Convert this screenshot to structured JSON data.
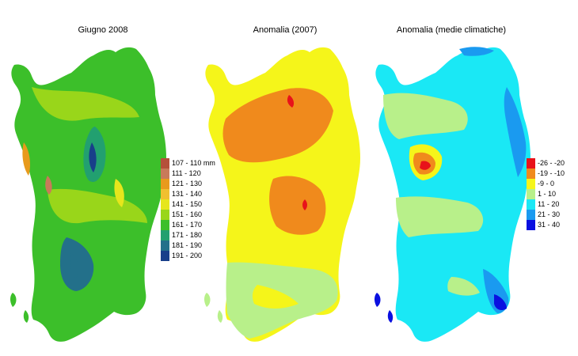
{
  "panels": [
    {
      "title": "Giugno 2008"
    },
    {
      "title": "Anomalia (2007)"
    },
    {
      "title": "Anomalia (medie climatiche)"
    }
  ],
  "legend_rain": [
    {
      "label": "107 - 110 mm",
      "color": "#b5503a"
    },
    {
      "label": "111 - 120",
      "color": "#c87a5a"
    },
    {
      "label": "121 - 130",
      "color": "#e89a1c"
    },
    {
      "label": "131 - 140",
      "color": "#f0c030"
    },
    {
      "label": "141 - 150",
      "color": "#e6e61c"
    },
    {
      "label": "151 - 160",
      "color": "#99d61a"
    },
    {
      "label": "161 - 170",
      "color": "#3cbf2a"
    },
    {
      "label": "171 - 180",
      "color": "#22a070"
    },
    {
      "label": "181 - 190",
      "color": "#23708a"
    },
    {
      "label": "191 - 200",
      "color": "#183f8a"
    }
  ],
  "legend_anomaly": [
    {
      "label": "-26 - -20",
      "color": "#e8121a"
    },
    {
      "label": "-19 - -10",
      "color": "#f08a1c"
    },
    {
      "label": "-9 - 0",
      "color": "#f5f51a"
    },
    {
      "label": "1 - 10",
      "color": "#b8f08a"
    },
    {
      "label": "11 - 20",
      "color": "#1ae8f5"
    },
    {
      "label": "21 - 30",
      "color": "#1a9af0"
    },
    {
      "label": "31 - 40",
      "color": "#0a10e0"
    }
  ]
}
